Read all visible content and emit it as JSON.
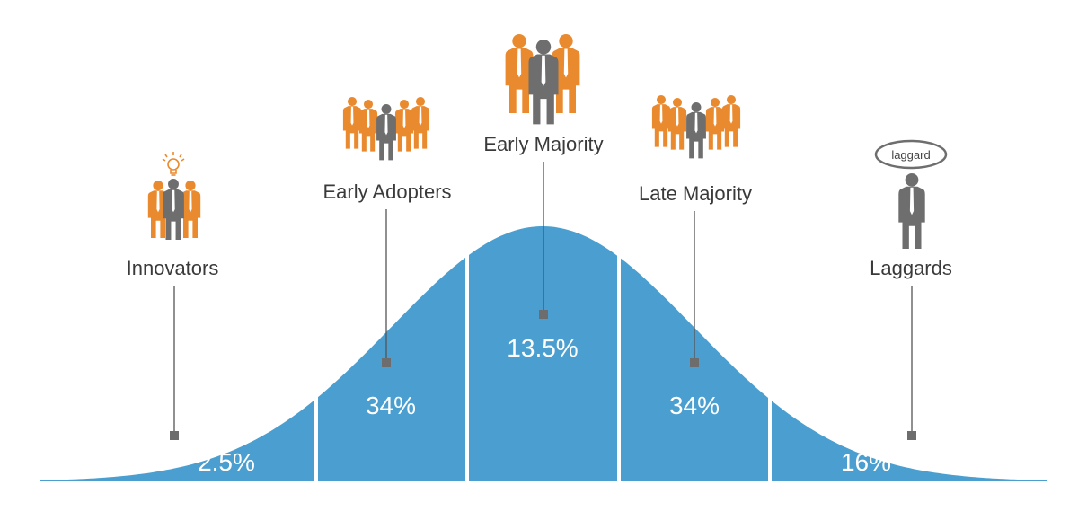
{
  "colors": {
    "curve": "#4a9fd0",
    "orange": "#ea8a2e",
    "gray": "#6e6e6e",
    "text": "#3a3a3a"
  },
  "icons": {
    "innovators": "lightbulb-icon",
    "laggards": "speech-bubble-icon"
  },
  "segments": [
    {
      "id": "innovators",
      "label": "Innovators",
      "percent": "2.5%"
    },
    {
      "id": "early-adopters",
      "label": "Early Adopters",
      "percent": "34%"
    },
    {
      "id": "early-majority",
      "label": "Early Majority",
      "percent": "13.5%"
    },
    {
      "id": "late-majority",
      "label": "Late Majority",
      "percent": "34%"
    },
    {
      "id": "laggards",
      "label": "Laggards",
      "percent": "16%"
    }
  ],
  "laggard_bubble": "laggard"
}
